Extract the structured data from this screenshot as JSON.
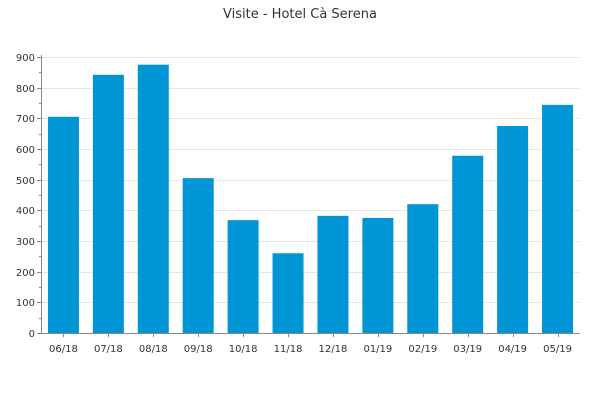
{
  "chart_data": {
    "type": "bar",
    "title": "Visite - Hotel Cà Serena",
    "categories": [
      "06/18",
      "07/18",
      "08/18",
      "09/18",
      "10/18",
      "11/18",
      "12/18",
      "01/19",
      "02/19",
      "03/19",
      "04/19",
      "05/19"
    ],
    "values": [
      705,
      842,
      875,
      505,
      368,
      260,
      382,
      375,
      420,
      578,
      675,
      744
    ],
    "ylim": [
      0,
      900
    ],
    "yticks": [
      0,
      100,
      200,
      300,
      400,
      500,
      600,
      700,
      800,
      900
    ],
    "grid": true,
    "legend": "none",
    "bar_color": "#0095d4"
  }
}
